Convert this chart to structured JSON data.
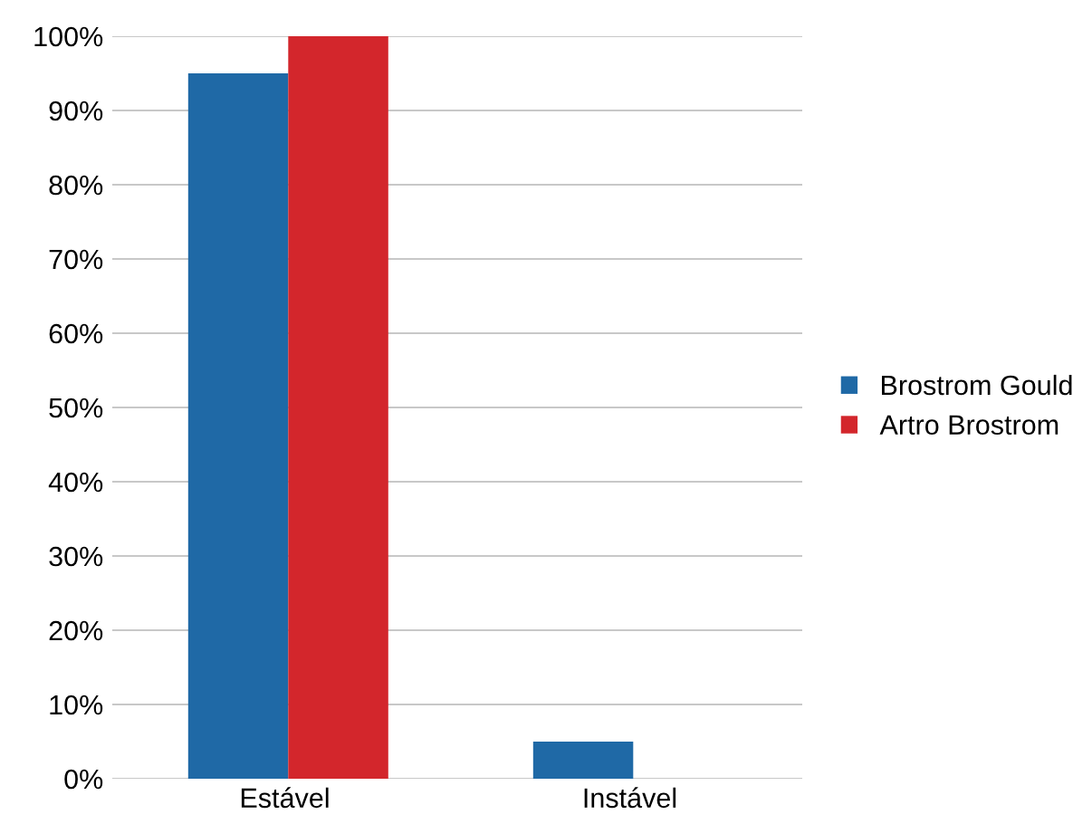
{
  "chart_data": {
    "type": "bar",
    "categories": [
      "Estável",
      "Instável"
    ],
    "series": [
      {
        "name": "Brostrom Gould",
        "color": "#1f69a6",
        "values": [
          95,
          5
        ]
      },
      {
        "name": "Artro Brostrom",
        "color": "#d3262c",
        "values": [
          100,
          0
        ]
      }
    ],
    "ylim": [
      0,
      100
    ],
    "yticks": [
      {
        "value": 0,
        "label": "0%"
      },
      {
        "value": 10,
        "label": "10%"
      },
      {
        "value": 20,
        "label": "20%"
      },
      {
        "value": 30,
        "label": "30%"
      },
      {
        "value": 40,
        "label": "40%"
      },
      {
        "value": 50,
        "label": "50%"
      },
      {
        "value": 60,
        "label": "60%"
      },
      {
        "value": 70,
        "label": "70%"
      },
      {
        "value": 80,
        "label": "80%"
      },
      {
        "value": 90,
        "label": "90%"
      },
      {
        "value": 100,
        "label": "100%"
      }
    ],
    "grid": "y",
    "legend": "right"
  }
}
